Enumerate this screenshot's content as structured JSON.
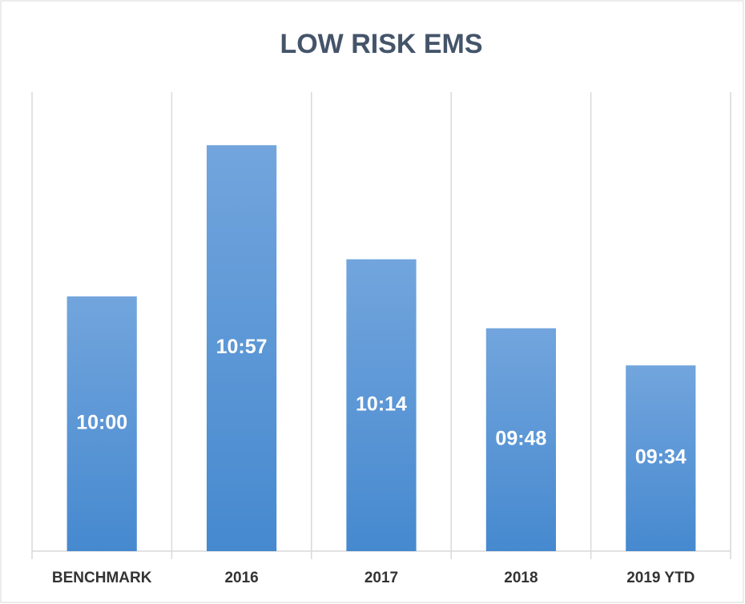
{
  "chart_data": {
    "type": "bar",
    "title": "LOW RISK EMS",
    "categories": [
      "BENCHMARK",
      "2016",
      "2017",
      "2018",
      "2019 YTD"
    ],
    "values": [
      600,
      657,
      614,
      588,
      574
    ],
    "value_labels": [
      "10:00",
      "10:57",
      "10:14",
      "09:48",
      "09:34"
    ],
    "color": "#5b9bd5",
    "ylim": [
      504,
      677
    ]
  }
}
